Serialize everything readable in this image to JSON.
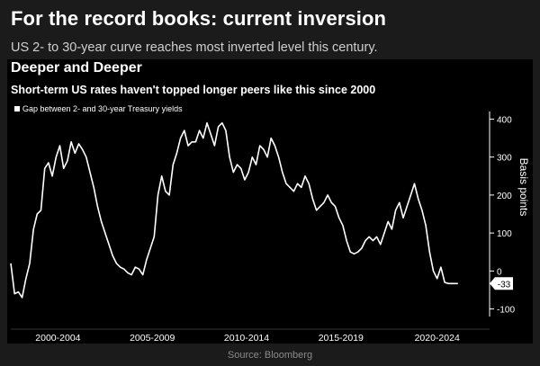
{
  "header": {
    "headline": "For the record books: current inversion",
    "subhead": "US 2- to 30-year curve reaches most inverted level this century."
  },
  "source": "Source: Bloomberg",
  "chart_data": {
    "type": "line",
    "title": "Deeper and Deeper",
    "subtitle": "Short-term US rates haven't topped longer peers like this since 2000",
    "ylabel": "Basis points",
    "xlabel": "",
    "ylim": [
      -120,
      420
    ],
    "yticks": [
      400,
      300,
      200,
      100,
      0,
      -100
    ],
    "xlim": [
      2000.0,
      2025.0
    ],
    "xticks": [
      {
        "label": "2000-2004",
        "at": 2002.5
      },
      {
        "label": "2005-2009",
        "at": 2007.5
      },
      {
        "label": "2010-2014",
        "at": 2012.5
      },
      {
        "label": "2015-2019",
        "at": 2017.5
      },
      {
        "label": "2020-2024",
        "at": 2022.6
      }
    ],
    "grid": false,
    "legend": "top-left",
    "current_value_label": "-33",
    "series": [
      {
        "name": "Gap between 2- and 30-year Treasury yields",
        "color": "#ffffff",
        "x": [
          2000.0,
          2000.2,
          2000.4,
          2000.6,
          2000.8,
          2001.0,
          2001.2,
          2001.4,
          2001.6,
          2001.8,
          2002.0,
          2002.2,
          2002.4,
          2002.6,
          2002.8,
          2003.0,
          2003.2,
          2003.4,
          2003.6,
          2003.8,
          2004.0,
          2004.2,
          2004.4,
          2004.6,
          2004.8,
          2005.0,
          2005.2,
          2005.4,
          2005.6,
          2005.8,
          2006.0,
          2006.2,
          2006.4,
          2006.6,
          2006.8,
          2007.0,
          2007.2,
          2007.4,
          2007.6,
          2007.8,
          2008.0,
          2008.2,
          2008.4,
          2008.6,
          2008.8,
          2009.0,
          2009.2,
          2009.4,
          2009.6,
          2009.8,
          2010.0,
          2010.2,
          2010.4,
          2010.6,
          2010.8,
          2011.0,
          2011.2,
          2011.4,
          2011.6,
          2011.8,
          2012.0,
          2012.2,
          2012.4,
          2012.6,
          2012.8,
          2013.0,
          2013.2,
          2013.4,
          2013.6,
          2013.8,
          2014.0,
          2014.2,
          2014.4,
          2014.6,
          2014.8,
          2015.0,
          2015.2,
          2015.4,
          2015.6,
          2015.8,
          2016.0,
          2016.2,
          2016.4,
          2016.6,
          2016.8,
          2017.0,
          2017.2,
          2017.4,
          2017.6,
          2017.8,
          2018.0,
          2018.2,
          2018.4,
          2018.6,
          2018.8,
          2019.0,
          2019.2,
          2019.4,
          2019.6,
          2019.8,
          2020.0,
          2020.2,
          2020.4,
          2020.6,
          2020.8,
          2021.0,
          2021.2,
          2021.4,
          2021.6,
          2021.8,
          2022.0,
          2022.2,
          2022.4,
          2022.6,
          2022.8,
          2023.0,
          2023.2,
          2023.4,
          2023.5,
          2023.7
        ],
        "values": [
          20,
          -60,
          -55,
          -70,
          -20,
          20,
          110,
          150,
          160,
          270,
          285,
          250,
          300,
          330,
          270,
          290,
          340,
          310,
          335,
          320,
          300,
          260,
          220,
          170,
          130,
          100,
          70,
          40,
          20,
          10,
          5,
          -5,
          -10,
          10,
          5,
          -10,
          30,
          60,
          90,
          200,
          250,
          210,
          200,
          280,
          310,
          350,
          370,
          330,
          340,
          340,
          370,
          350,
          390,
          360,
          330,
          380,
          390,
          370,
          300,
          260,
          280,
          270,
          240,
          260,
          300,
          280,
          330,
          320,
          300,
          350,
          330,
          300,
          260,
          230,
          220,
          210,
          230,
          220,
          250,
          230,
          190,
          160,
          170,
          180,
          200,
          180,
          170,
          140,
          120,
          80,
          50,
          45,
          50,
          60,
          80,
          90,
          80,
          90,
          70,
          100,
          130,
          110,
          160,
          180,
          140,
          170,
          200,
          230,
          190,
          160,
          120,
          50,
          0,
          -20,
          10,
          -30,
          -33,
          -33,
          -33,
          -33
        ]
      }
    ]
  }
}
